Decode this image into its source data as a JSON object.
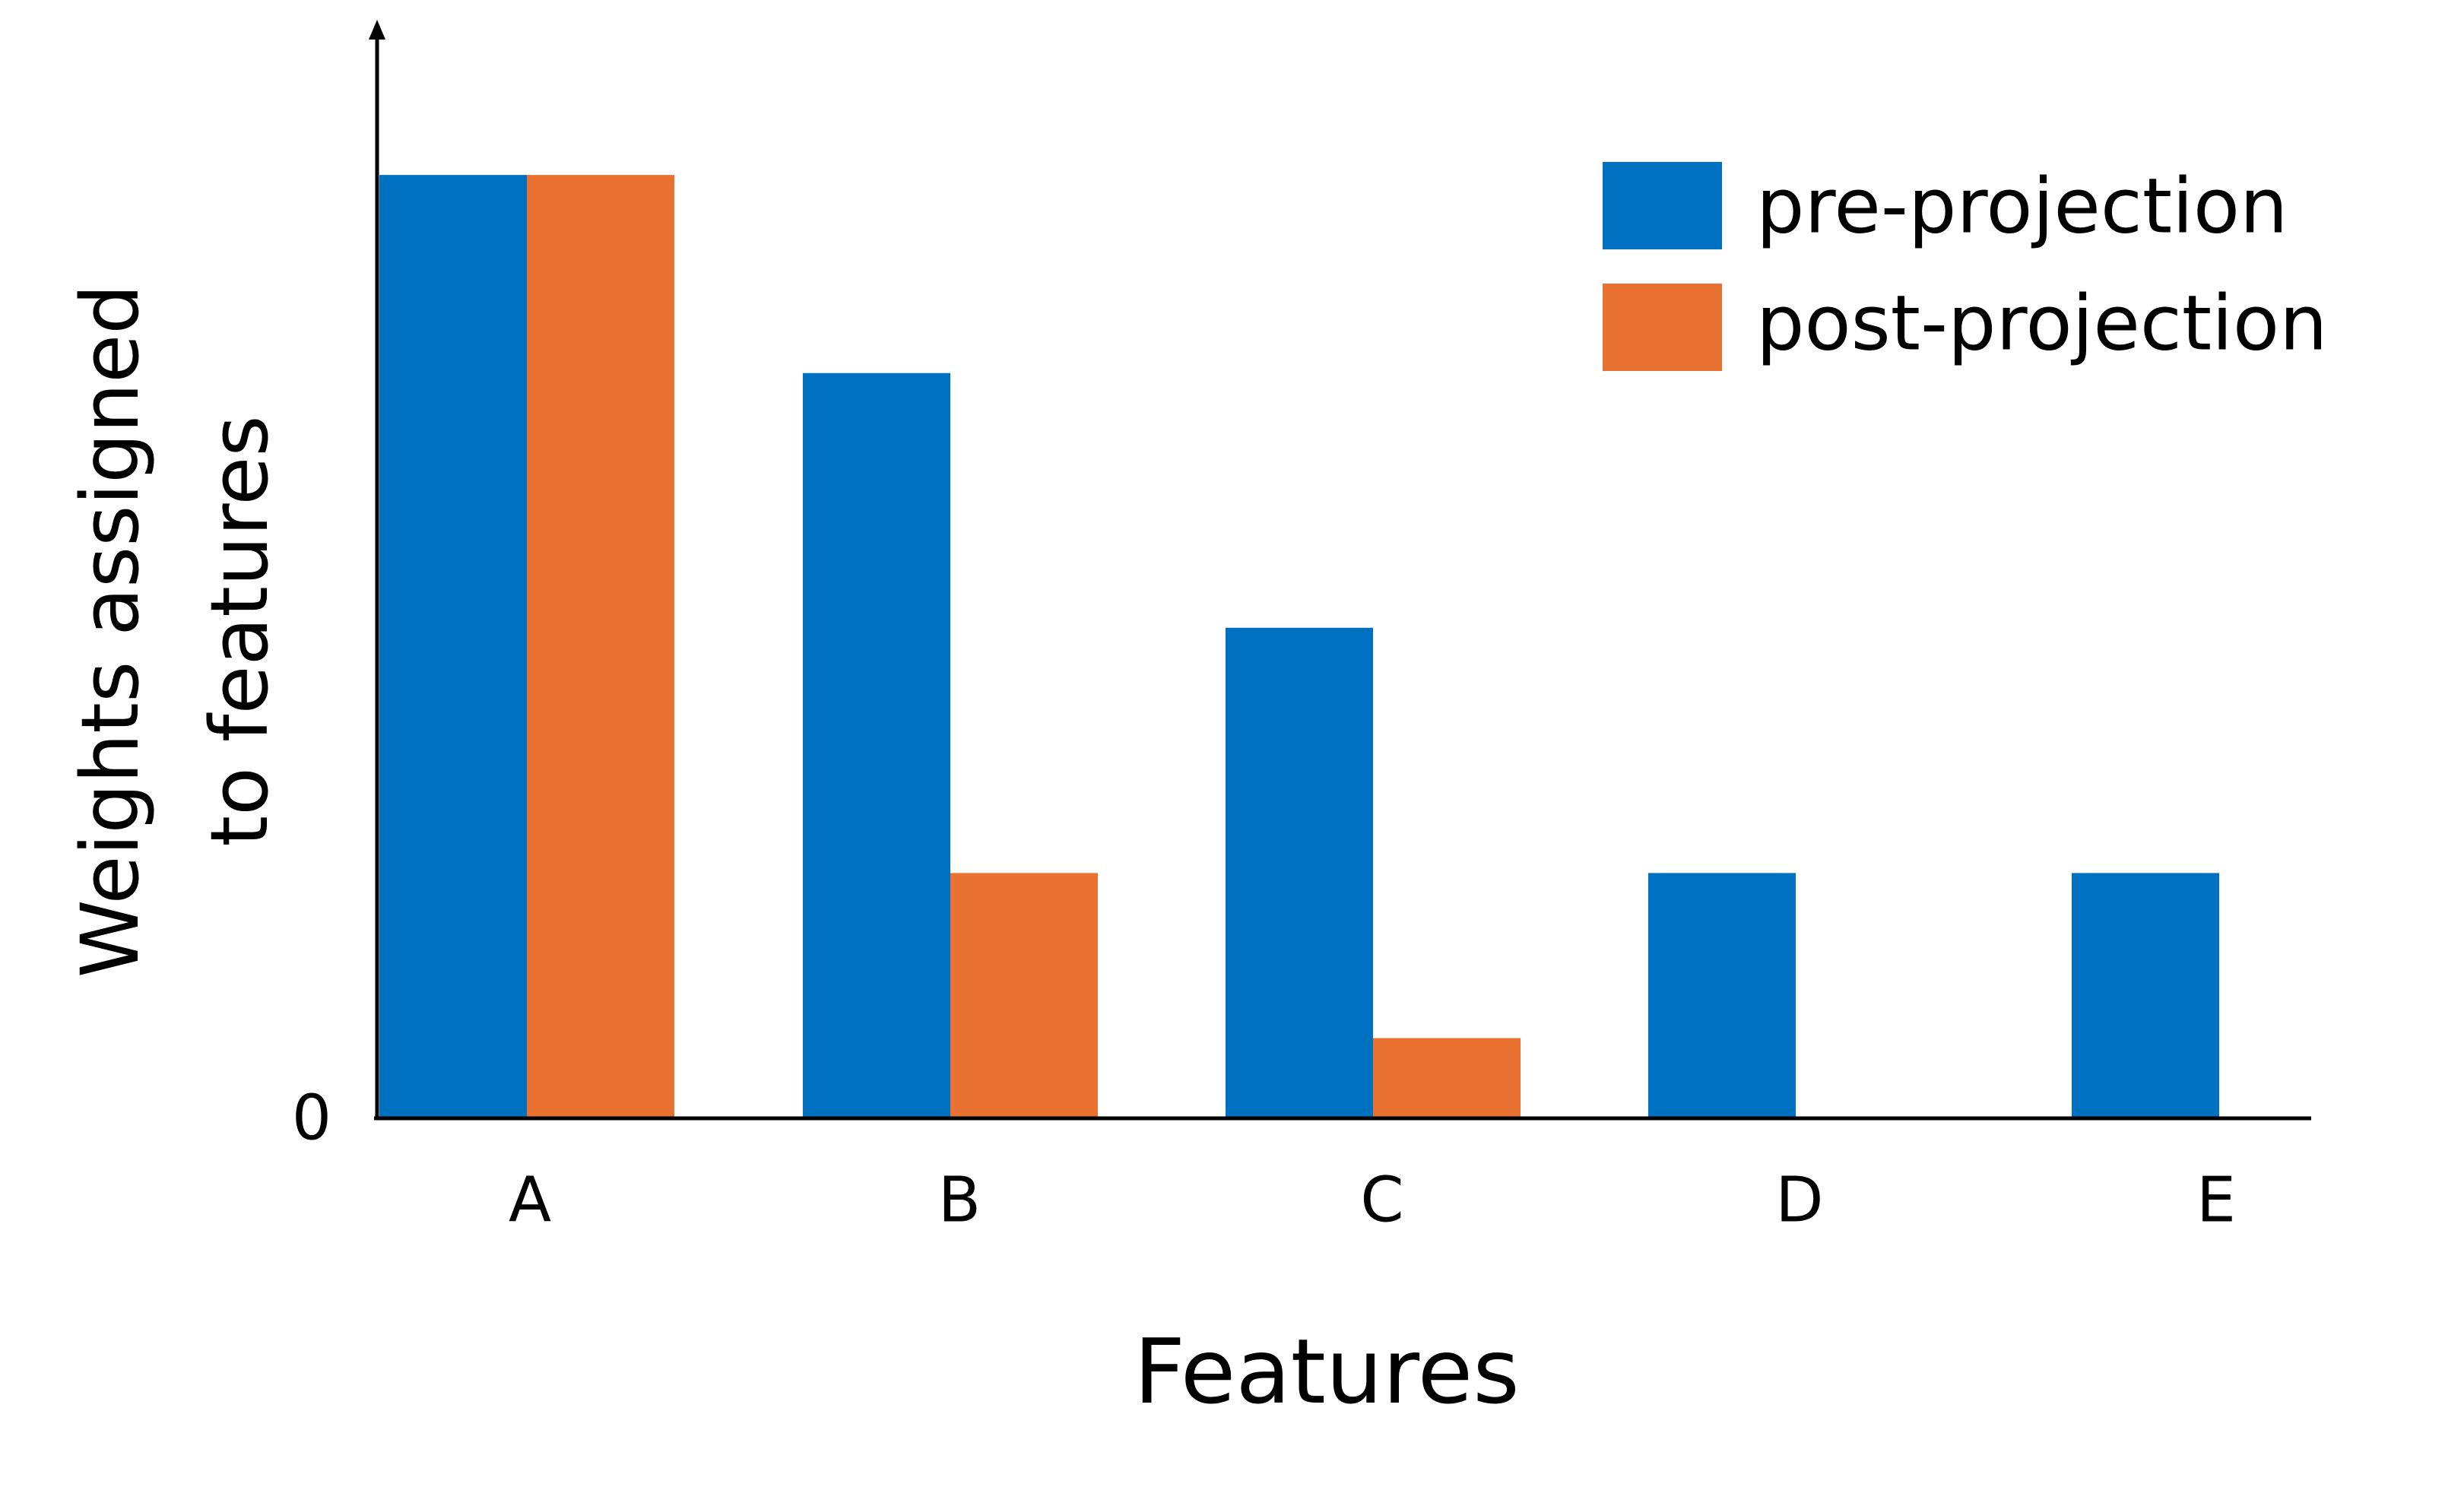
{
  "chart_data": {
    "type": "bar",
    "categories": [
      "A",
      "B",
      "C",
      "D",
      "E"
    ],
    "series": [
      {
        "name": "pre-projection",
        "color": "#0070C0",
        "values": [
          1.0,
          0.79,
          0.52,
          0.26,
          0.26
        ]
      },
      {
        "name": "post-projection",
        "color": "#E97132",
        "values": [
          1.0,
          0.26,
          0.085,
          0,
          0
        ]
      }
    ],
    "title": "",
    "xlabel": "Features",
    "ylabel": [
      "Weights assigned",
      "to features"
    ],
    "y_tick_labels": [
      "0"
    ],
    "ylim": [
      0,
      1.15
    ],
    "grid": false,
    "legend_position": "top-right"
  }
}
